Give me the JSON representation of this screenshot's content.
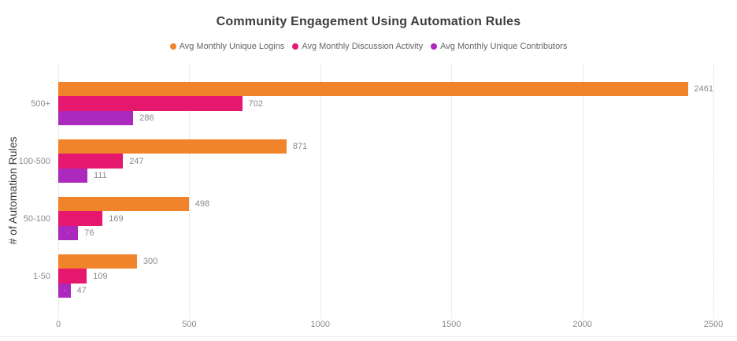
{
  "title": "Community Engagement Using Automation Rules",
  "legend": [
    {
      "label": "Avg Monthly Unique Logins",
      "color": "#F1832B",
      "icon": "circle"
    },
    {
      "label": "Avg Monthly Discussion Activity",
      "color": "#E5186E",
      "icon": "circle"
    },
    {
      "label": "Avg Monthly Unique Contributors",
      "color": "#AB2ABD",
      "icon": "circle"
    }
  ],
  "chart_data": {
    "type": "bar",
    "orientation": "horizontal",
    "title": "Community Engagement Using Automation Rules",
    "xlabel": "",
    "ylabel": "# of Automation Rules",
    "categories": [
      "500+",
      "100-500",
      "50-100",
      "1-50"
    ],
    "series": [
      {
        "name": "Avg Monthly Unique Logins",
        "color": "#F1832B",
        "values": [
          2461,
          871,
          498,
          300
        ]
      },
      {
        "name": "Avg Monthly Discussion Activity",
        "color": "#E5186E",
        "values": [
          702,
          247,
          169,
          109
        ]
      },
      {
        "name": "Avg Monthly Unique Contributors",
        "color": "#AB2ABD",
        "values": [
          286,
          111,
          76,
          47
        ]
      }
    ],
    "xlim": [
      0,
      2500
    ],
    "xticks": [
      0,
      500,
      1000,
      1500,
      2000,
      2500
    ],
    "grid": "vertical-dotted",
    "gridline_color": "#d9d9d9",
    "legend_position": "top",
    "data_labels": true,
    "data_label_color": "#8a8a8a"
  }
}
